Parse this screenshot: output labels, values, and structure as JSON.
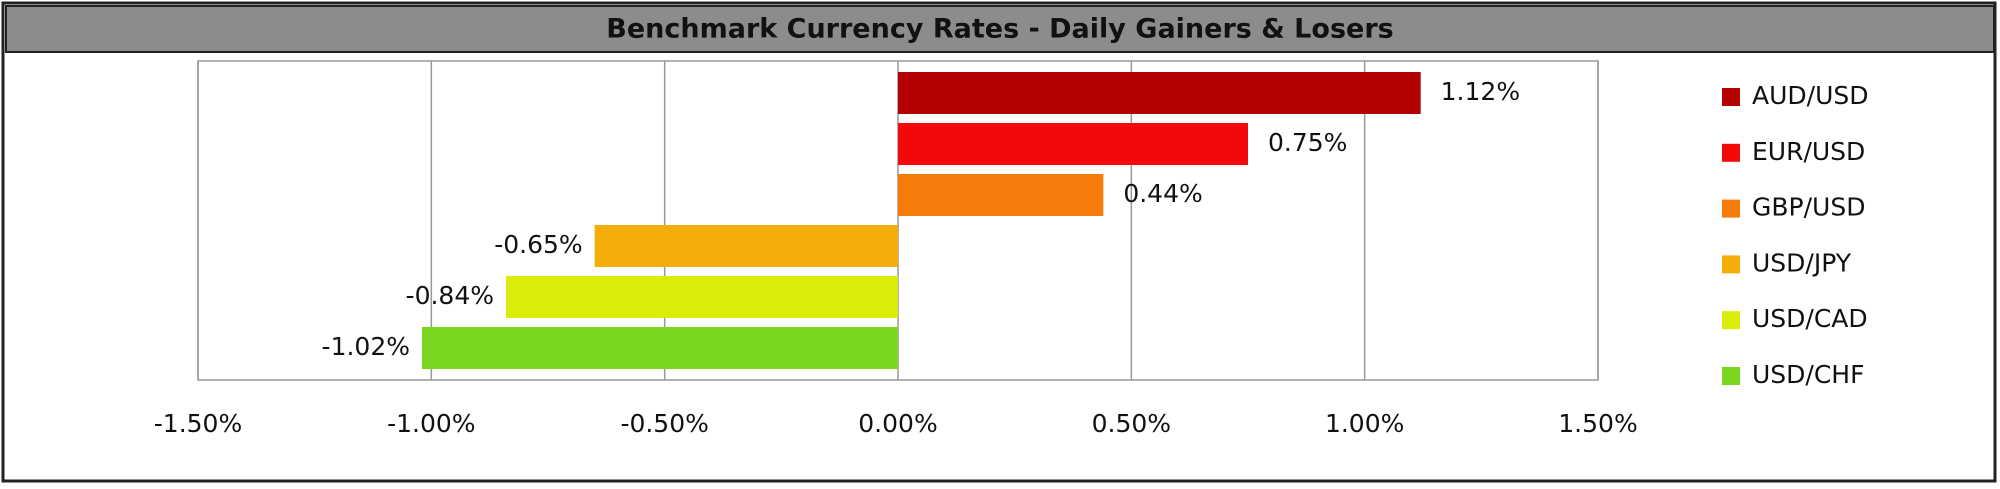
{
  "chart_data": {
    "type": "bar",
    "orientation": "horizontal",
    "title": "Benchmark Currency Rates - Daily Gainers & Losers",
    "categories": [
      "AUD/USD",
      "EUR/USD",
      "GBP/USD",
      "USD/JPY",
      "USD/CAD",
      "USD/CHF"
    ],
    "values": [
      1.12,
      0.75,
      0.44,
      -0.65,
      -0.84,
      -1.02
    ],
    "value_labels": [
      "1.12%",
      "0.75%",
      "0.44%",
      "-0.65%",
      "-0.84%",
      "-1.02%"
    ],
    "colors": [
      "#b30000",
      "#f20a0a",
      "#f57c0a",
      "#f5ad0a",
      "#d9ec0a",
      "#7ad61e"
    ],
    "xlim": [
      -1.5,
      1.5
    ],
    "xticks": [
      {
        "value": -1.5,
        "label": "-1.50%"
      },
      {
        "value": -1.0,
        "label": "-1.00%"
      },
      {
        "value": -0.5,
        "label": "-0.50%"
      },
      {
        "value": 0,
        "label": "0.00%"
      },
      {
        "value": 0.5,
        "label": "0.50%"
      },
      {
        "value": 1.0,
        "label": "1.00%"
      },
      {
        "value": 1.5,
        "label": "1.50%"
      }
    ],
    "grid": true,
    "legend": "right"
  }
}
